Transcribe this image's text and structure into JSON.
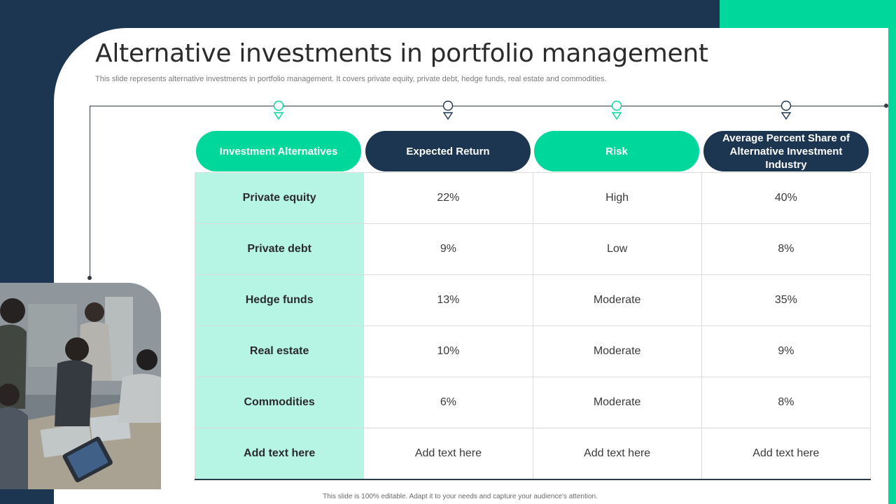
{
  "title": "Alternative investments in portfolio management",
  "subtitle": "This slide represents alternative investments in portfolio management. It covers private equity, private debt, hedge funds, real estate and commodities.",
  "columns": [
    {
      "label": "Investment Alternatives",
      "color": "#00d89b"
    },
    {
      "label": "Expected Return",
      "color": "#1c3550"
    },
    {
      "label": "Risk",
      "color": "#00d89b"
    },
    {
      "label": "Average Percent Share of Alternative Investment Industry",
      "color": "#1c3550"
    }
  ],
  "rows": [
    [
      "Private equity",
      "22%",
      "High",
      "40%"
    ],
    [
      "Private debt",
      "9%",
      "Low",
      "8%"
    ],
    [
      "Hedge funds",
      "13%",
      "Moderate",
      "35%"
    ],
    [
      "Real estate",
      "10%",
      "Moderate",
      "9%"
    ],
    [
      "Commodities",
      "6%",
      "Moderate",
      "8%"
    ],
    [
      "Add text here",
      "Add text here",
      "Add text here",
      "Add text here"
    ]
  ],
  "footer": "This slide is 100% editable. Adapt it to your needs and capture your audience's attention.",
  "colors": {
    "navy": "#1c3550",
    "green": "#00d89b",
    "mint": "#b6f5e4"
  }
}
